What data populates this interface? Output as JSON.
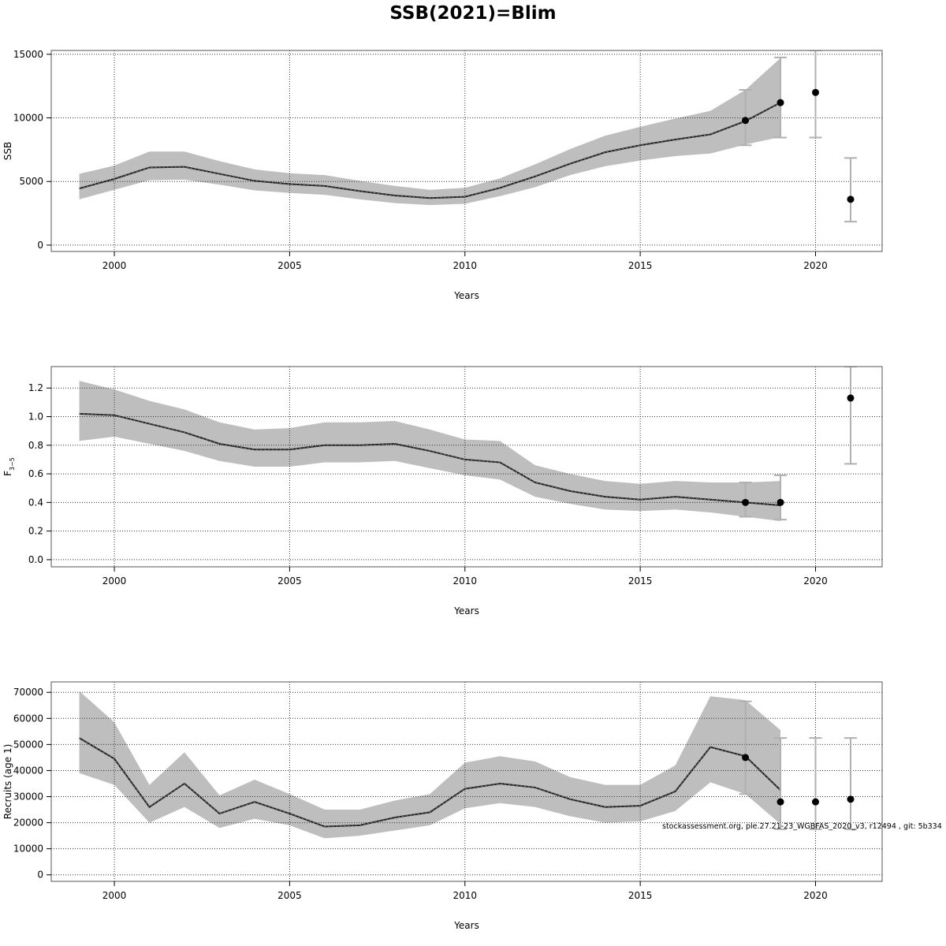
{
  "title": "SSB(2021)=Blim",
  "footnote": "stockassessment.org, ple.27.21-23_WGBFAS_2020_v3, r12494 , git: 5b334",
  "colors": {
    "band": "#bebebe",
    "line": "#222222",
    "errorbar": "#b0b0b0",
    "point": "#000000",
    "grid": "#333333"
  },
  "chart_data": [
    {
      "type": "line",
      "xlabel": "Years",
      "ylabel": "SSB",
      "xlim": [
        1998.2,
        2021.9
      ],
      "ylim": [
        -500,
        15300
      ],
      "xticks": [
        2000,
        2005,
        2010,
        2015,
        2020
      ],
      "yticks": [
        0,
        5000,
        10000,
        15000
      ],
      "ytick_labels": [
        "0",
        "5000",
        "10000",
        "15000"
      ],
      "grid": true,
      "series": [
        {
          "x": [
            1999,
            2000,
            2001,
            2002,
            2003,
            2004,
            2005,
            2006,
            2007,
            2008,
            2009,
            2010,
            2011,
            2012,
            2013,
            2014,
            2015,
            2016,
            2017,
            2018,
            2019
          ],
          "y": [
            4450,
            5200,
            6100,
            6150,
            5600,
            5050,
            4800,
            4650,
            4250,
            3900,
            3700,
            3800,
            4500,
            5400,
            6400,
            7300,
            7850,
            8300,
            8700,
            9750,
            11200
          ],
          "lower": [
            3600,
            4350,
            5100,
            5150,
            4750,
            4300,
            4100,
            3950,
            3600,
            3300,
            3150,
            3250,
            3850,
            4550,
            5500,
            6200,
            6650,
            7000,
            7200,
            7900,
            8500
          ],
          "upper": [
            5600,
            6250,
            7350,
            7350,
            6600,
            5950,
            5650,
            5500,
            5050,
            4650,
            4350,
            4500,
            5250,
            6350,
            7550,
            8600,
            9300,
            9950,
            10550,
            12200,
            14700
          ]
        }
      ],
      "points": [
        {
          "x": 2018,
          "y": 9800,
          "lower": 7850,
          "upper": 12200
        },
        {
          "x": 2019,
          "y": 11200,
          "lower": 8450,
          "upper": 14750
        },
        {
          "x": 2020,
          "y": 12000,
          "lower": 8450,
          "upper": 15300
        },
        {
          "x": 2021,
          "y": 3600,
          "lower": 1850,
          "upper": 6850
        }
      ]
    },
    {
      "type": "line",
      "xlabel": "Years",
      "ylabel": "F",
      "ylabel_sub": "3−5",
      "xlim": [
        1998.2,
        2021.9
      ],
      "ylim": [
        -0.05,
        1.35
      ],
      "xticks": [
        2000,
        2005,
        2010,
        2015,
        2020
      ],
      "yticks": [
        0.0,
        0.2,
        0.4,
        0.6,
        0.8,
        1.0,
        1.2
      ],
      "ytick_labels": [
        "0.0",
        "0.2",
        "0.4",
        "0.6",
        "0.8",
        "1.0",
        "1.2"
      ],
      "grid": true,
      "series": [
        {
          "x": [
            1999,
            2000,
            2001,
            2002,
            2003,
            2004,
            2005,
            2006,
            2007,
            2008,
            2009,
            2010,
            2011,
            2012,
            2013,
            2014,
            2015,
            2016,
            2017,
            2018,
            2019
          ],
          "y": [
            1.02,
            1.01,
            0.95,
            0.89,
            0.81,
            0.77,
            0.77,
            0.8,
            0.8,
            0.81,
            0.76,
            0.7,
            0.68,
            0.54,
            0.48,
            0.44,
            0.42,
            0.44,
            0.42,
            0.4,
            0.38
          ],
          "lower": [
            0.83,
            0.86,
            0.81,
            0.76,
            0.69,
            0.65,
            0.65,
            0.68,
            0.68,
            0.69,
            0.64,
            0.59,
            0.56,
            0.44,
            0.39,
            0.35,
            0.34,
            0.35,
            0.33,
            0.3,
            0.27
          ],
          "upper": [
            1.25,
            1.19,
            1.11,
            1.05,
            0.96,
            0.91,
            0.92,
            0.96,
            0.96,
            0.97,
            0.91,
            0.84,
            0.83,
            0.66,
            0.6,
            0.55,
            0.53,
            0.55,
            0.54,
            0.54,
            0.55
          ]
        }
      ],
      "points": [
        {
          "x": 2018,
          "y": 0.4,
          "lower": 0.3,
          "upper": 0.54
        },
        {
          "x": 2019,
          "y": 0.4,
          "lower": 0.28,
          "upper": 0.59
        },
        {
          "x": 2021,
          "y": 1.13,
          "lower": 0.67,
          "upper": 1.35
        }
      ]
    },
    {
      "type": "line",
      "xlabel": "Years",
      "ylabel": "Recruits (age 1)",
      "xlim": [
        1998.2,
        2021.9
      ],
      "ylim": [
        -2500,
        74000
      ],
      "xticks": [
        2000,
        2005,
        2010,
        2015,
        2020
      ],
      "yticks": [
        0,
        10000,
        20000,
        30000,
        40000,
        50000,
        60000,
        70000
      ],
      "ytick_labels": [
        "0",
        "10000",
        "20000",
        "30000",
        "40000",
        "50000",
        "60000",
        "70000"
      ],
      "grid": true,
      "series": [
        {
          "x": [
            1999,
            2000,
            2001,
            2002,
            2003,
            2004,
            2005,
            2006,
            2007,
            2008,
            2009,
            2010,
            2011,
            2012,
            2013,
            2014,
            2015,
            2016,
            2017,
            2018,
            2019
          ],
          "y": [
            52500,
            44500,
            26000,
            35000,
            23500,
            28000,
            23500,
            18500,
            19000,
            22000,
            24000,
            33000,
            35000,
            33500,
            29000,
            26000,
            26500,
            32000,
            49000,
            45500,
            32500
          ],
          "lower": [
            39000,
            34500,
            20000,
            26000,
            18000,
            21500,
            19000,
            14000,
            15000,
            17000,
            19000,
            25500,
            27500,
            26000,
            22500,
            20000,
            20500,
            24500,
            35500,
            31000,
            19500
          ],
          "upper": [
            70500,
            58500,
            34500,
            47000,
            30500,
            36500,
            31000,
            25000,
            25000,
            28500,
            31000,
            43000,
            45500,
            43500,
            37500,
            34500,
            34500,
            42000,
            68500,
            67000,
            55500
          ]
        }
      ],
      "points": [
        {
          "x": 2018,
          "y": 45000,
          "lower": 31000,
          "upper": 66500
        },
        {
          "x": 2019,
          "y": 28000,
          "lower": 17500,
          "upper": 52500
        },
        {
          "x": 2020,
          "y": 28000,
          "lower": 17500,
          "upper": 52500
        },
        {
          "x": 2021,
          "y": 29000,
          "lower": 17500,
          "upper": 52500
        }
      ]
    }
  ]
}
